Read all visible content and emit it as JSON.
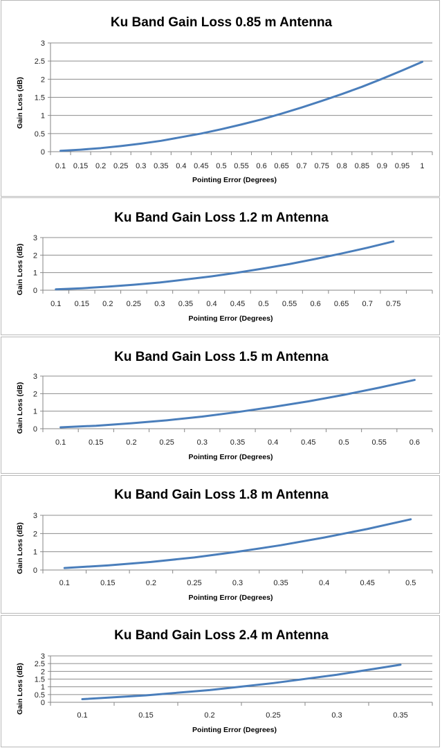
{
  "line_color": "#4a7ebb",
  "chart_data": [
    {
      "type": "line",
      "title": "Ku Band Gain Loss 0.85 m Antenna",
      "xlabel": "Pointing Error (Degrees)",
      "ylabel": "Gain Loss (dB)",
      "categories": [
        "0.1",
        "0.15",
        "0.2",
        "0.25",
        "0.3",
        "0.35",
        "0.4",
        "0.45",
        "0.5",
        "0.55",
        "0.6",
        "0.65",
        "0.7",
        "0.75",
        "0.8",
        "0.85",
        "0.9",
        "0.95",
        "1"
      ],
      "values": [
        0.025,
        0.056,
        0.099,
        0.155,
        0.223,
        0.3,
        0.4,
        0.5,
        0.62,
        0.75,
        0.89,
        1.05,
        1.22,
        1.4,
        1.59,
        1.79,
        2.01,
        2.24,
        2.48
      ],
      "ylim": [
        0,
        3
      ],
      "yticks": [
        "0",
        "0.5",
        "1",
        "1.5",
        "2",
        "2.5",
        "3"
      ],
      "grid": true
    },
    {
      "type": "line",
      "title": "Ku Band Gain Loss 1.2 m Antenna",
      "xlabel": "Pointing Error (Degrees)",
      "ylabel": "Gain  Loss  (dB)",
      "categories": [
        "0.1",
        "0.15",
        "0.2",
        "0.25",
        "0.3",
        "0.35",
        "0.4",
        "0.45",
        "0.5",
        "0.55",
        "0.6",
        "0.65",
        "0.7",
        "0.75",
        ""
      ],
      "values": [
        0.05,
        0.11,
        0.2,
        0.31,
        0.44,
        0.61,
        0.79,
        1.0,
        1.24,
        1.49,
        1.78,
        2.09,
        2.42,
        2.78,
        null
      ],
      "ylim": [
        0,
        3
      ],
      "yticks": [
        "0",
        "1",
        "2",
        "3"
      ],
      "grid": true
    },
    {
      "type": "line",
      "title": "Ku Band Gain Loss 1.5 m Antenna",
      "xlabel": "Pointing Error (Degrees)",
      "ylabel": "Gain  Loss  (dB)",
      "categories": [
        "0.1",
        "0.15",
        "0.2",
        "0.25",
        "0.3",
        "0.35",
        "0.4",
        "0.45",
        "0.5",
        "0.55",
        "0.6"
      ],
      "values": [
        0.08,
        0.17,
        0.31,
        0.48,
        0.69,
        0.95,
        1.24,
        1.56,
        1.93,
        2.34,
        2.78
      ],
      "ylim": [
        0,
        3
      ],
      "yticks": [
        "0",
        "1",
        "2",
        "3"
      ],
      "grid": true
    },
    {
      "type": "line",
      "title": "Ku Band Gain Loss 1.8 m Antenna",
      "xlabel": "Pointing  Error  (Degrees)",
      "ylabel": "Gain  Loss  (dB)",
      "categories": [
        "0.1",
        "0.15",
        "0.2",
        "0.25",
        "0.3",
        "0.35",
        "0.4",
        "0.45",
        "0.5"
      ],
      "values": [
        0.11,
        0.25,
        0.44,
        0.69,
        1.0,
        1.36,
        1.78,
        2.25,
        2.78
      ],
      "ylim": [
        0,
        3
      ],
      "yticks": [
        "0",
        "1",
        "2",
        "3"
      ],
      "grid": true
    },
    {
      "type": "line",
      "title": "Ku Band Gain Loss 2.4 m Antenna",
      "xlabel": "Pointing Error  (Degrees)",
      "ylabel": "Gain   Loss   (dB)",
      "categories": [
        "0.1",
        "0.15",
        "0.2",
        "0.25",
        "0.3",
        "0.35"
      ],
      "values": [
        0.2,
        0.45,
        0.79,
        1.24,
        1.78,
        2.43
      ],
      "ylim": [
        0,
        3
      ],
      "yticks": [
        "0",
        "0.5",
        "1",
        "1.5",
        "2",
        "2.5",
        "3"
      ],
      "grid": true
    }
  ]
}
